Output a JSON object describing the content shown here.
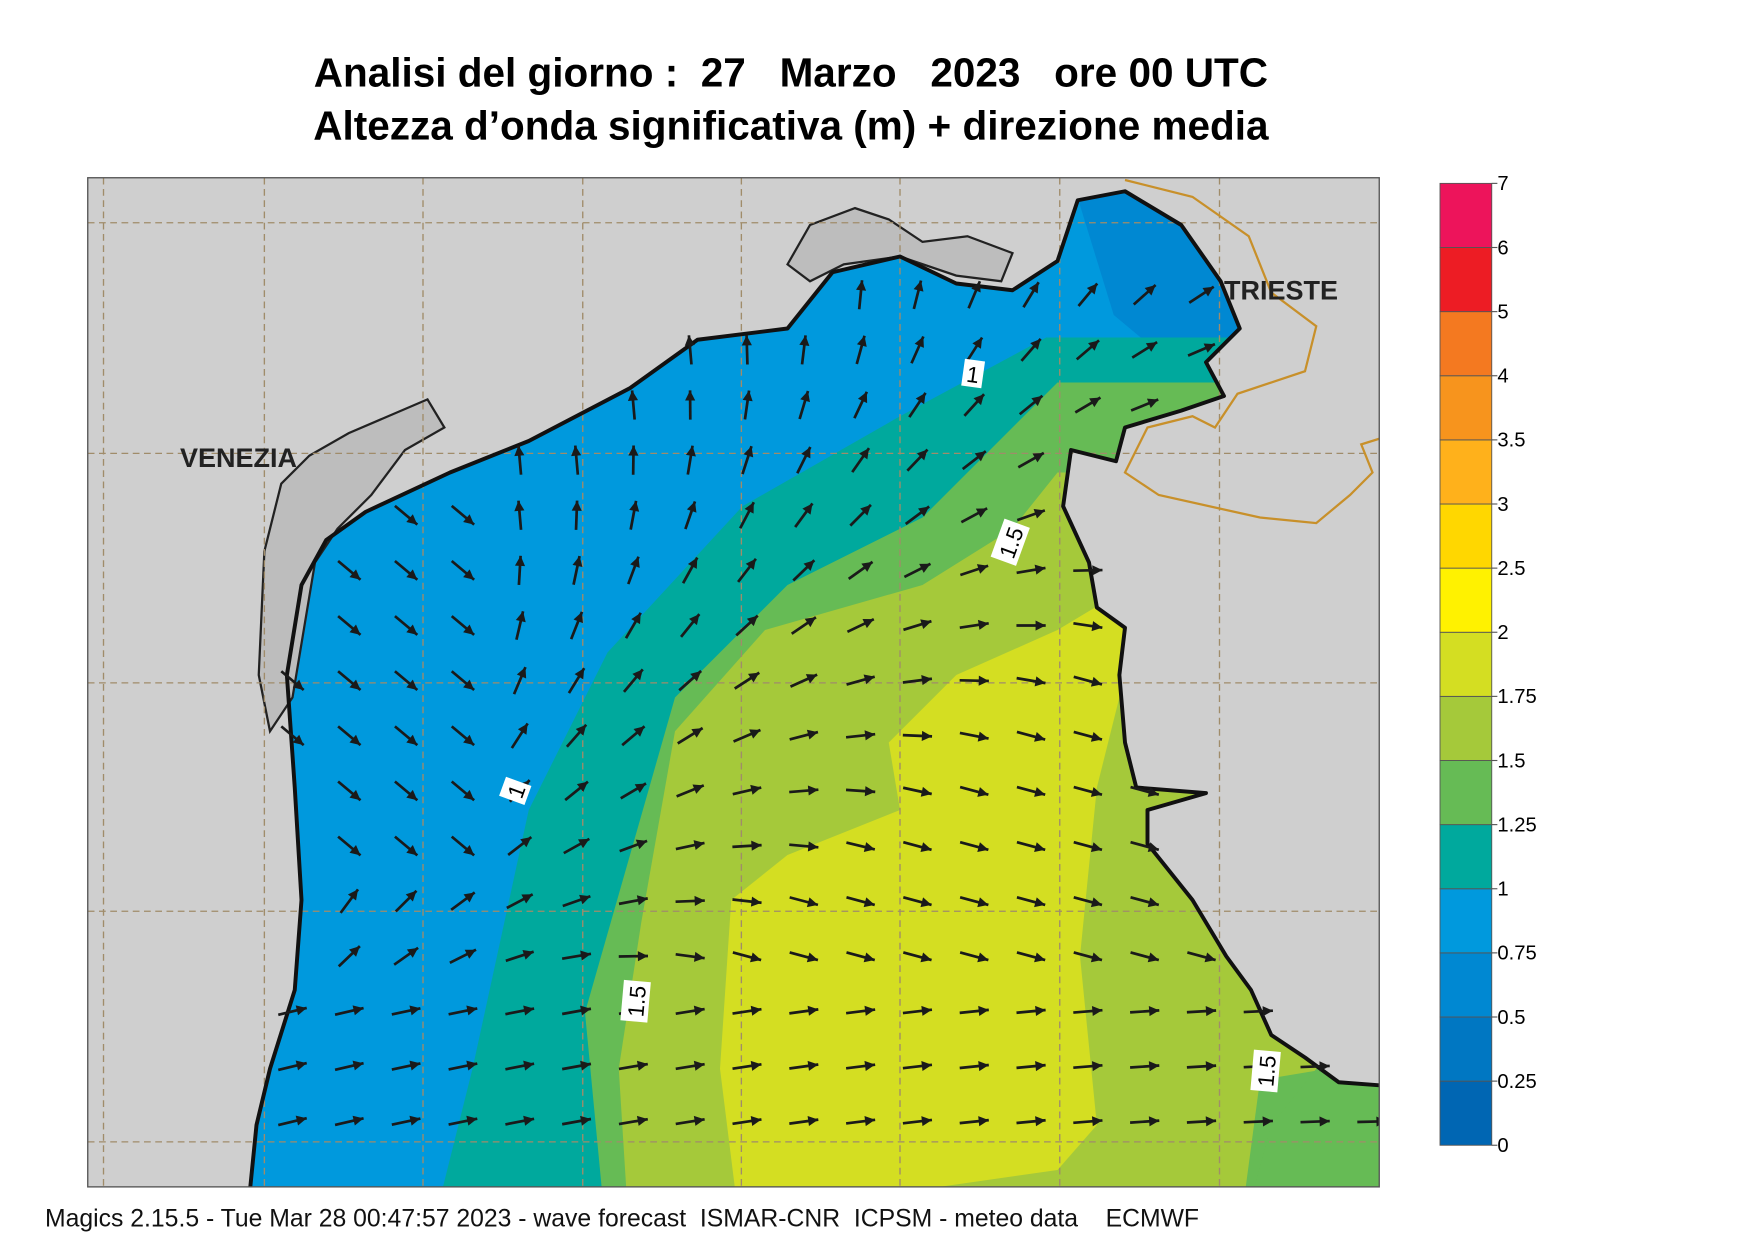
{
  "title": [
    "Analisi del giorno :  27   Marzo   2023   ore 00 UTC",
    "Altezza d’onda significativa (m) + direzione media"
  ],
  "places": [
    "VENEZIA",
    "TRIESTE"
  ],
  "contour_labels": [
    "1",
    "1.5",
    "1.5",
    "1",
    "1.5"
  ],
  "legend": {
    "levels": [
      0,
      0.25,
      0.5,
      0.75,
      1,
      1.25,
      1.5,
      1.75,
      2,
      2.5,
      3,
      3.5,
      4,
      5,
      6,
      7
    ],
    "colors": [
      "#0066b3",
      "#0077c2",
      "#0088d2",
      "#0099dd",
      "#00a99d",
      "#66bb55",
      "#a5c93a",
      "#d4de22",
      "#fff200",
      "#ffd700",
      "#ffb11b",
      "#f7941d",
      "#f47920",
      "#ed1c24",
      "#ed145b"
    ]
  },
  "footer": "Magics 2.15.5 - Tue Mar 28 00:47:57 2023 - wave forecast  ISMAR-CNR  ICPSM - meteo data    ECMWF"
}
